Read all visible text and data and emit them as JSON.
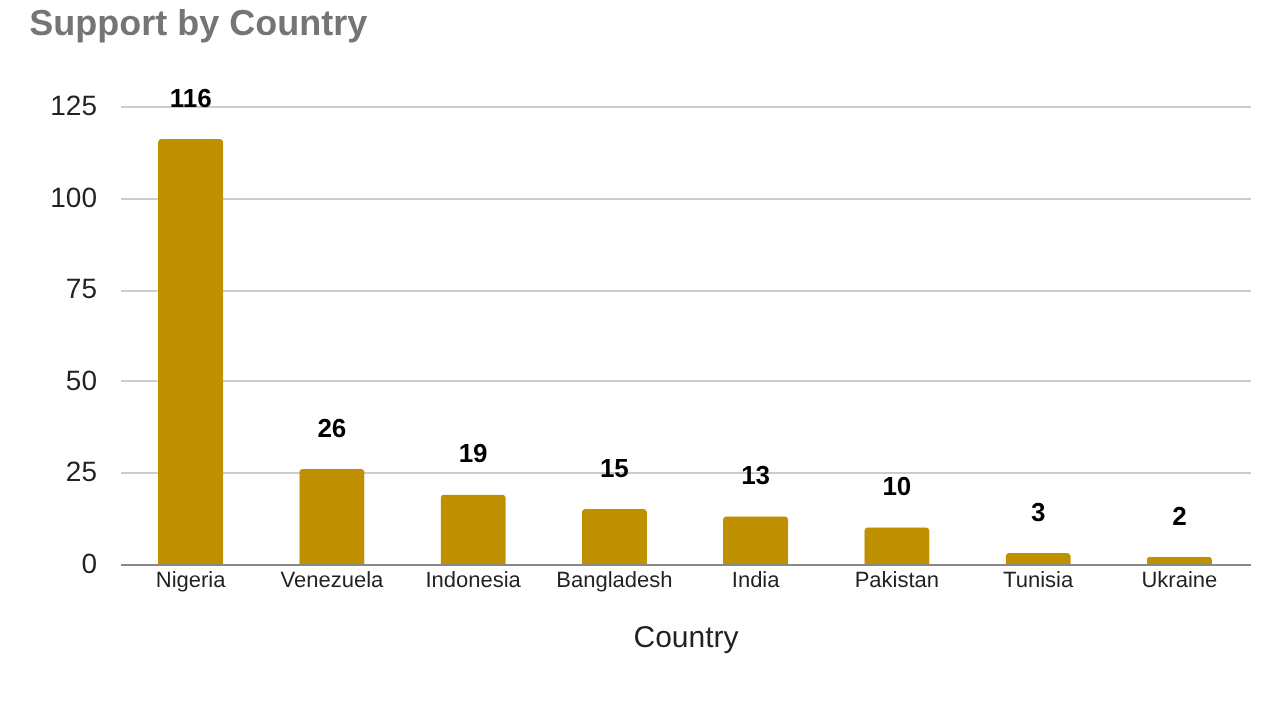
{
  "chart_data": {
    "type": "bar",
    "title": "Support by Country",
    "xlabel": "Country",
    "categories": [
      "Nigeria",
      "Venezuela",
      "Indonesia",
      "Bangladesh",
      "India",
      "Pakistan",
      "Tunisia",
      "Ukraine"
    ],
    "values": [
      116,
      26,
      19,
      15,
      13,
      10,
      3,
      2
    ],
    "color": "#bf9000",
    "ylim": [
      0,
      125
    ],
    "yticks": [
      0,
      25,
      50,
      75,
      100,
      125
    ],
    "grid": "y",
    "data_labels": true
  }
}
